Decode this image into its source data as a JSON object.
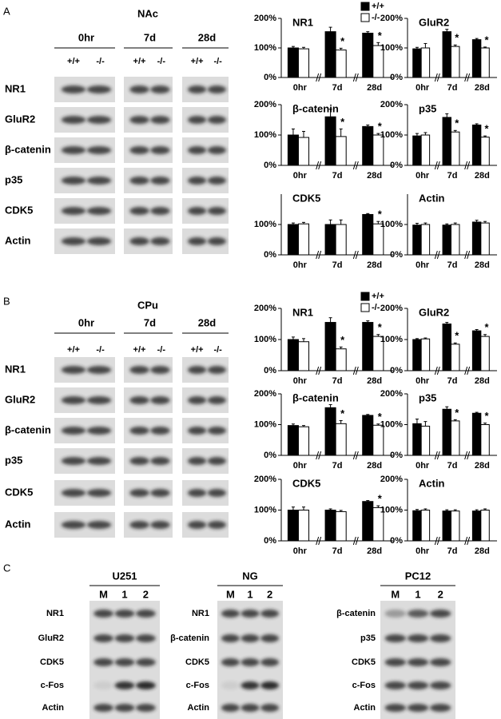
{
  "blots_ab": [
    {
      "letter": "A",
      "region": "NAc",
      "times": [
        "0hr",
        "7d",
        "28d"
      ],
      "genotypes": [
        "+/+",
        "-/-"
      ],
      "proteins": [
        "NR1",
        "GluR2",
        "β-catenin",
        "p35",
        "CDK5",
        "Actin"
      ]
    },
    {
      "letter": "B",
      "region": "CPu",
      "times": [
        "0hr",
        "7d",
        "28d"
      ],
      "genotypes": [
        "+/+",
        "-/-"
      ],
      "proteins": [
        "NR1",
        "GluR2",
        "β-catenin",
        "p35",
        "CDK5",
        "Actin"
      ]
    }
  ],
  "blots_c": {
    "letter": "C",
    "lanes": [
      "M",
      "1",
      "2"
    ],
    "groups": [
      {
        "cell": "U251",
        "proteins": [
          "NR1",
          "GluR2",
          "CDK5",
          "c-Fos",
          "Actin"
        ]
      },
      {
        "cell": "NG",
        "proteins": [
          "NR1",
          "β-catenin",
          "CDK5",
          "c-Fos",
          "Actin"
        ]
      },
      {
        "cell": "PC12",
        "proteins": [
          "β-catenin",
          "p35",
          "CDK5",
          "c-Fos",
          "Actin"
        ]
      }
    ]
  },
  "chart_data": [
    {
      "type": "bar",
      "title": "NR1",
      "categories": [
        "0hr",
        "7d",
        "28d"
      ],
      "ylim": [
        0,
        200
      ],
      "yticks": [
        {
          "value": 0,
          "label": "0%"
        },
        {
          "value": 100,
          "label": "100%"
        },
        {
          "value": 200,
          "label": "200%"
        }
      ],
      "legend": "top-right",
      "series": [
        {
          "name": "+/+",
          "color": "#000000",
          "values": [
            100,
            155,
            150
          ],
          "errors": [
            5,
            15,
            5
          ]
        },
        {
          "name": "-/-",
          "color": "#ffffff",
          "values": [
            97,
            93,
            108
          ],
          "errors": [
            5,
            6,
            10
          ],
          "annotations": [
            null,
            "*",
            "*"
          ]
        }
      ]
    },
    {
      "type": "bar",
      "title": "GluR2",
      "categories": [
        "0hr",
        "7d",
        "28d"
      ],
      "ylim": [
        0,
        200
      ],
      "yticks": [
        {
          "value": 0,
          "label": "0%"
        },
        {
          "value": 100,
          "label": "100%"
        },
        {
          "value": 200,
          "label": "200%"
        }
      ],
      "series": [
        {
          "name": "+/+",
          "color": "#000000",
          "values": [
            97,
            155,
            128
          ],
          "errors": [
            5,
            8,
            4
          ]
        },
        {
          "name": "-/-",
          "color": "#ffffff",
          "values": [
            100,
            105,
            100
          ],
          "errors": [
            15,
            5,
            3
          ],
          "annotations": [
            null,
            "*",
            "*"
          ]
        }
      ]
    },
    {
      "type": "bar",
      "title": "β-catenin",
      "categories": [
        "0hr",
        "7d",
        "28d"
      ],
      "ylim": [
        0,
        200
      ],
      "yticks": [
        {
          "value": 0,
          "label": "0%"
        },
        {
          "value": 100,
          "label": "100%"
        },
        {
          "value": 200,
          "label": "200%"
        }
      ],
      "series": [
        {
          "name": "+/+",
          "color": "#000000",
          "values": [
            100,
            160,
            128
          ],
          "errors": [
            20,
            25,
            5
          ]
        },
        {
          "name": "-/-",
          "color": "#ffffff",
          "values": [
            92,
            95,
            100
          ],
          "errors": [
            20,
            25,
            5
          ],
          "annotations": [
            null,
            "*",
            "*"
          ]
        }
      ]
    },
    {
      "type": "bar",
      "title": "p35",
      "categories": [
        "0hr",
        "7d",
        "28d"
      ],
      "ylim": [
        0,
        200
      ],
      "yticks": [
        {
          "value": 0,
          "label": "0%"
        },
        {
          "value": 100,
          "label": "100%"
        },
        {
          "value": 200,
          "label": "200%"
        }
      ],
      "series": [
        {
          "name": "+/+",
          "color": "#000000",
          "values": [
            97,
            158,
            133
          ],
          "errors": [
            8,
            12,
            4
          ]
        },
        {
          "name": "-/-",
          "color": "#ffffff",
          "values": [
            100,
            110,
            93
          ],
          "errors": [
            8,
            5,
            4
          ],
          "annotations": [
            null,
            "*",
            "*"
          ]
        }
      ]
    },
    {
      "type": "bar",
      "title": "CDK5",
      "categories": [
        "0hr",
        "7d",
        "28d"
      ],
      "ylim": [
        0,
        200
      ],
      "yticks": [
        {
          "value": 0,
          "label": "0%"
        },
        {
          "value": 100,
          "label": "100%"
        }
      ],
      "series": [
        {
          "name": "+/+",
          "color": "#000000",
          "values": [
            100,
            100,
            133
          ],
          "errors": [
            5,
            15,
            3
          ]
        },
        {
          "name": "-/-",
          "color": "#ffffff",
          "values": [
            102,
            100,
            102
          ],
          "errors": [
            5,
            15,
            8
          ],
          "annotations": [
            null,
            null,
            "*"
          ]
        }
      ]
    },
    {
      "type": "bar",
      "title": "Actin",
      "categories": [
        "0hr",
        "7d",
        "28d"
      ],
      "ylim": [
        0,
        200
      ],
      "yticks": [
        {
          "value": 0,
          "label": "0%"
        },
        {
          "value": 100,
          "label": "100%"
        }
      ],
      "series": [
        {
          "name": "+/+",
          "color": "#000000",
          "values": [
            98,
            98,
            108
          ],
          "errors": [
            6,
            4,
            6
          ]
        },
        {
          "name": "-/-",
          "color": "#ffffff",
          "values": [
            100,
            100,
            105
          ],
          "errors": [
            5,
            5,
            5
          ]
        }
      ]
    },
    {
      "type": "bar",
      "title": "NR1",
      "categories": [
        "0hr",
        "7d",
        "28d"
      ],
      "ylim": [
        0,
        200
      ],
      "yticks": [
        {
          "value": 0,
          "label": "0%"
        },
        {
          "value": 100,
          "label": "100%"
        },
        {
          "value": 200,
          "label": "200%"
        }
      ],
      "legend": "top-right",
      "series": [
        {
          "name": "+/+",
          "color": "#000000",
          "values": [
            100,
            155,
            155
          ],
          "errors": [
            8,
            15,
            5
          ]
        },
        {
          "name": "-/-",
          "color": "#ffffff",
          "values": [
            93,
            70,
            110
          ],
          "errors": [
            10,
            6,
            6
          ],
          "annotations": [
            null,
            "*",
            "*"
          ]
        }
      ]
    },
    {
      "type": "bar",
      "title": "GluR2",
      "categories": [
        "0hr",
        "7d",
        "28d"
      ],
      "ylim": [
        0,
        200
      ],
      "yticks": [
        {
          "value": 0,
          "label": "0%"
        },
        {
          "value": 100,
          "label": "100%"
        },
        {
          "value": 200,
          "label": "200%"
        }
      ],
      "series": [
        {
          "name": "+/+",
          "color": "#000000",
          "values": [
            100,
            150,
            128
          ],
          "errors": [
            3,
            5,
            4
          ]
        },
        {
          "name": "-/-",
          "color": "#ffffff",
          "values": [
            102,
            85,
            110
          ],
          "errors": [
            3,
            4,
            6
          ],
          "annotations": [
            null,
            "*",
            "*"
          ]
        }
      ]
    },
    {
      "type": "bar",
      "title": "β-catenin",
      "categories": [
        "0hr",
        "7d",
        "28d"
      ],
      "ylim": [
        0,
        200
      ],
      "yticks": [
        {
          "value": 0,
          "label": "0%"
        },
        {
          "value": 100,
          "label": "100%"
        },
        {
          "value": 200,
          "label": "200%"
        }
      ],
      "series": [
        {
          "name": "+/+",
          "color": "#000000",
          "values": [
            97,
            155,
            130
          ],
          "errors": [
            5,
            10,
            3
          ]
        },
        {
          "name": "-/-",
          "color": "#ffffff",
          "values": [
            93,
            103,
            98
          ],
          "errors": [
            4,
            10,
            4
          ],
          "annotations": [
            null,
            "*",
            "*"
          ]
        }
      ]
    },
    {
      "type": "bar",
      "title": "p35",
      "categories": [
        "0hr",
        "7d",
        "28d"
      ],
      "ylim": [
        0,
        200
      ],
      "yticks": [
        {
          "value": 0,
          "label": "0%"
        },
        {
          "value": 100,
          "label": "100%"
        },
        {
          "value": 200,
          "label": "200%"
        }
      ],
      "series": [
        {
          "name": "+/+",
          "color": "#000000",
          "values": [
            103,
            150,
            137
          ],
          "errors": [
            15,
            8,
            3
          ]
        },
        {
          "name": "-/-",
          "color": "#ffffff",
          "values": [
            95,
            112,
            100
          ],
          "errors": [
            15,
            4,
            5
          ],
          "annotations": [
            null,
            "*",
            "*"
          ]
        }
      ]
    },
    {
      "type": "bar",
      "title": "CDK5",
      "categories": [
        "0hr",
        "7d",
        "28d"
      ],
      "ylim": [
        0,
        200
      ],
      "yticks": [
        {
          "value": 0,
          "label": "0%"
        },
        {
          "value": 100,
          "label": "100%"
        },
        {
          "value": 200,
          "label": "200%"
        }
      ],
      "series": [
        {
          "name": "+/+",
          "color": "#000000",
          "values": [
            100,
            100,
            128
          ],
          "errors": [
            10,
            4,
            3
          ]
        },
        {
          "name": "-/-",
          "color": "#ffffff",
          "values": [
            100,
            95,
            108
          ],
          "errors": [
            10,
            4,
            6
          ],
          "annotations": [
            null,
            null,
            "*"
          ]
        }
      ]
    },
    {
      "type": "bar",
      "title": "Actin",
      "categories": [
        "0hr",
        "7d",
        "28d"
      ],
      "ylim": [
        0,
        200
      ],
      "yticks": [
        {
          "value": 0,
          "label": "0%"
        },
        {
          "value": 100,
          "label": "100%"
        },
        {
          "value": 200,
          "label": "200%"
        }
      ],
      "series": [
        {
          "name": "+/+",
          "color": "#000000",
          "values": [
            98,
            97,
            97
          ],
          "errors": [
            4,
            4,
            4
          ]
        },
        {
          "name": "-/-",
          "color": "#ffffff",
          "values": [
            100,
            97,
            100
          ],
          "errors": [
            4,
            4,
            4
          ]
        }
      ]
    }
  ]
}
